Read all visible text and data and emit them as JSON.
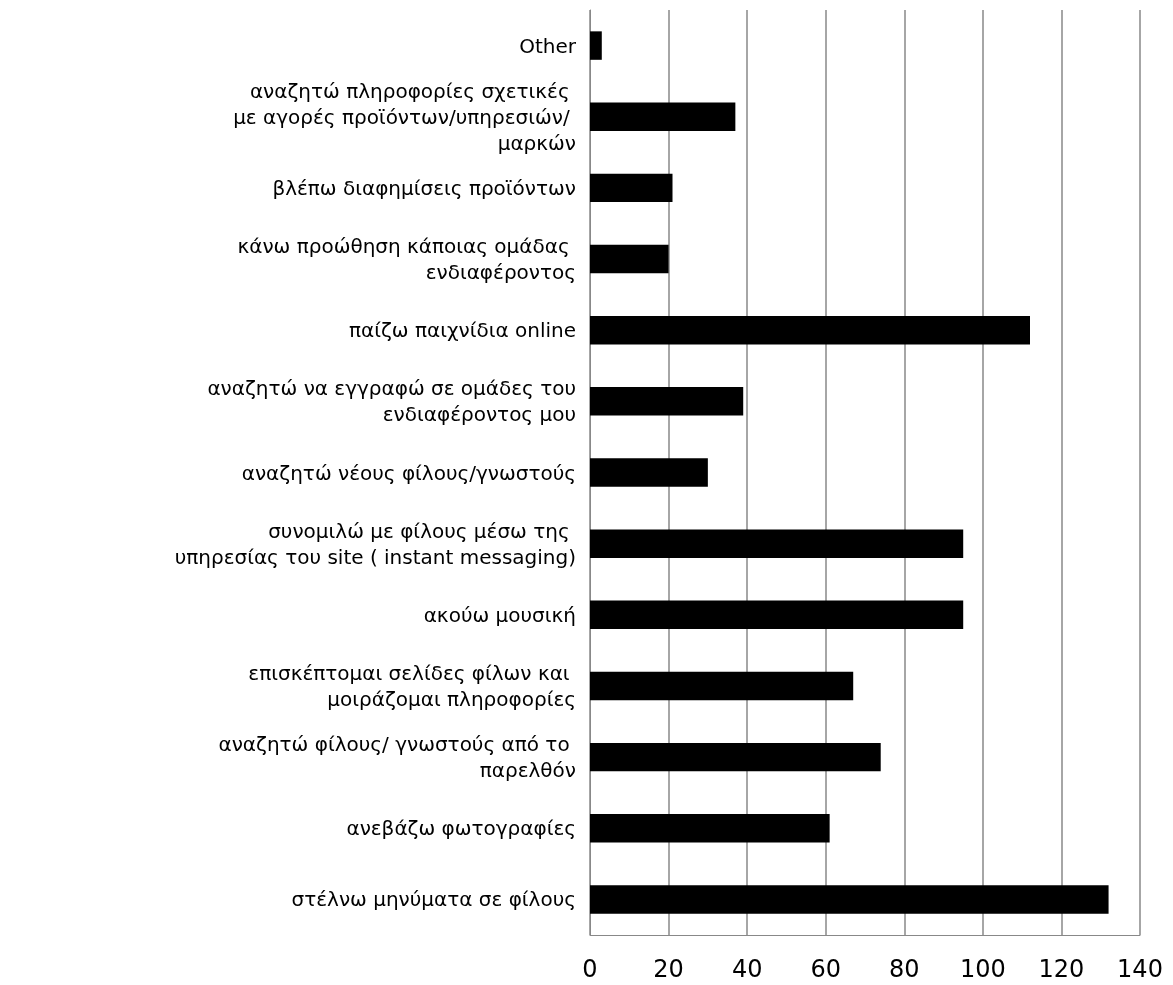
{
  "chart_data": {
    "type": "bar",
    "orientation": "horizontal",
    "categories": [
      "Other",
      "αναζητώ πληροφορίες σχετικές με αγορές προϊόντων/υπηρεσιών/ μαρκών",
      "βλέπω διαφημίσεις προϊόντων",
      "κάνω προώθηση κάποιας ομάδας ενδιαφέροντος",
      "παίζω παιχνίδια online",
      "αναζητώ να εγγραφώ σε ομάδες του ενδιαφέροντος μου",
      "αναζητώ νέους φίλους/γνωστούς",
      "συνομιλώ με φίλους μέσω της υπηρεσίας του site ( instant messaging)",
      "ακούω μουσική",
      "επισκέπτομαι σελίδες φίλων και μοιράζομαι πληροφορίες",
      "αναζητώ φίλους/ γνωστούς από το παρελθόν",
      "ανεβάζω φωτογραφίες",
      "στέλνω μηνύματα σε φίλους"
    ],
    "values": [
      3,
      37,
      21,
      20,
      112,
      39,
      30,
      95,
      95,
      67,
      74,
      61,
      132
    ],
    "color": "#000000",
    "xlim": [
      0,
      140
    ],
    "xticks": [
      0,
      20,
      40,
      60,
      80,
      100,
      120,
      140
    ],
    "grid": "x"
  }
}
